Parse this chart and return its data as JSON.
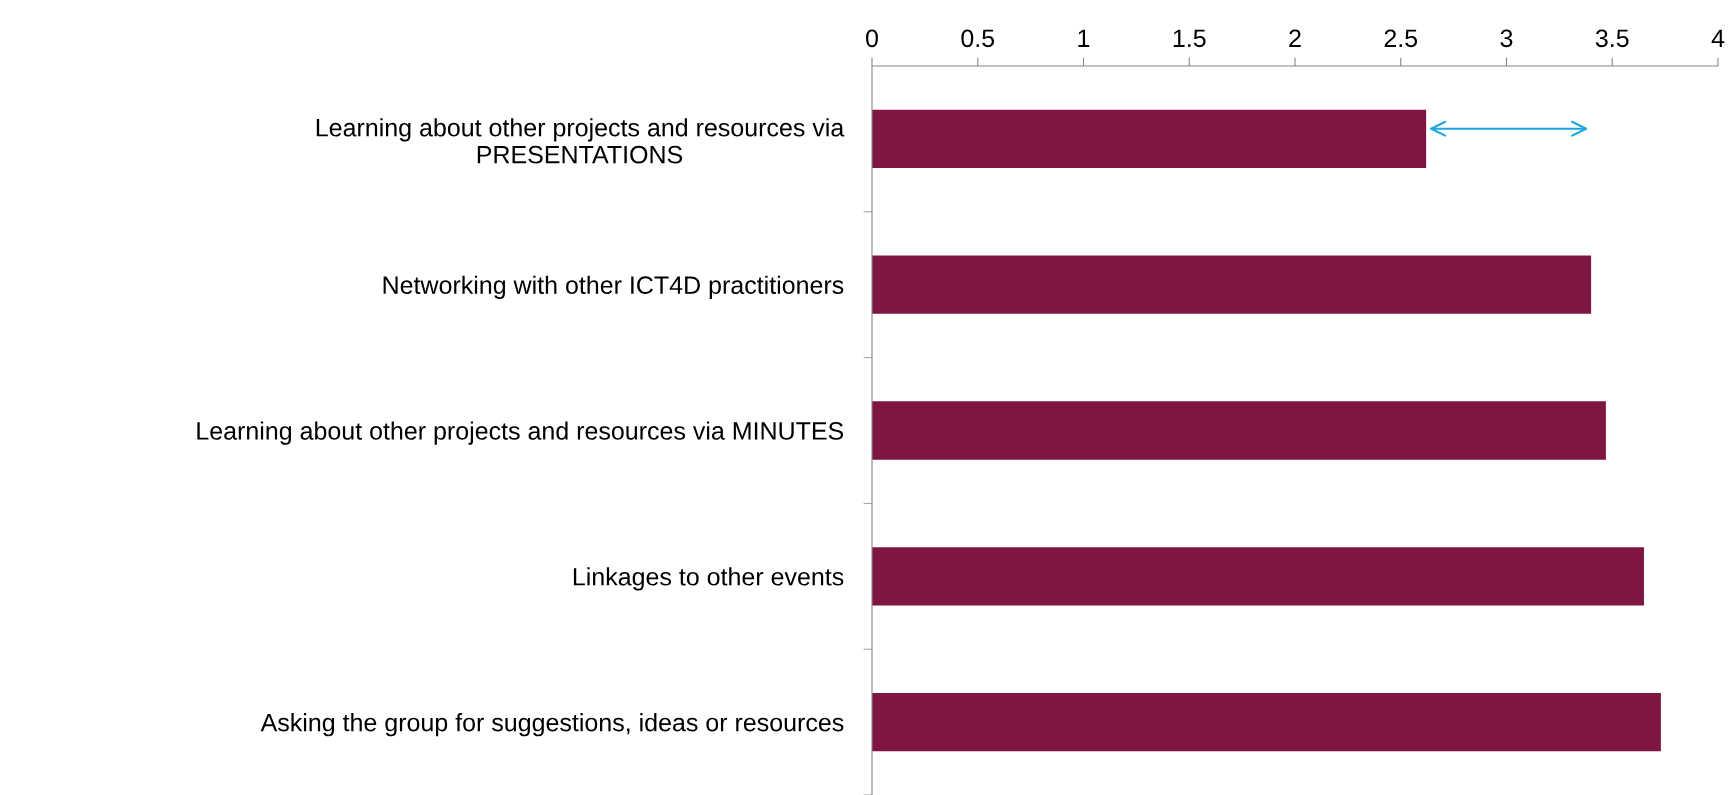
{
  "chart_data": {
    "type": "bar",
    "orientation": "horizontal",
    "categories": [
      "Learning about other projects and resources via\nPRESENTATIONS",
      "Networking with other ICT4D practitioners",
      "Learning about other projects and resources via MINUTES",
      "Linkages to other events",
      "Asking the group for suggestions, ideas or resources"
    ],
    "values": [
      2.62,
      3.4,
      3.47,
      3.65,
      3.73
    ],
    "color": "#7f1642",
    "xlim": [
      0,
      4
    ],
    "xticks": [
      0,
      0.5,
      1,
      1.5,
      2,
      2.5,
      3,
      3.5,
      4
    ],
    "grid": false,
    "legend": false
  }
}
